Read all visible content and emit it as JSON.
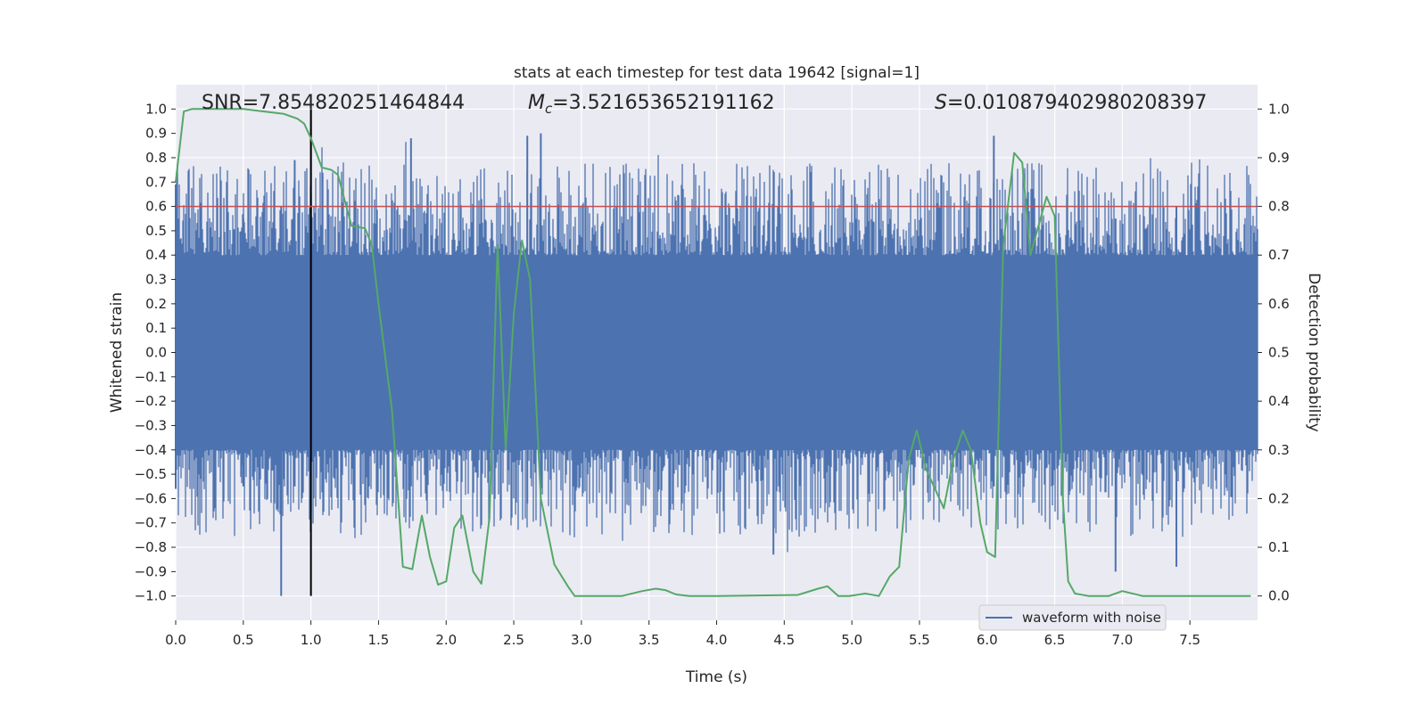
{
  "chart_data": {
    "type": "line",
    "title": "stats at each timestep for test data 19642 [signal=1]",
    "xlabel": "Time (s)",
    "ylabel": "Whitened strain",
    "y2label": "Detection probability",
    "xlim": [
      0.0,
      8.0
    ],
    "ylim": [
      -1.1,
      1.1
    ],
    "y2lim": [
      -0.05,
      1.05
    ],
    "x_ticks": [
      0.0,
      0.5,
      1.0,
      1.5,
      2.0,
      2.5,
      3.0,
      3.5,
      4.0,
      4.5,
      5.0,
      5.5,
      6.0,
      6.5,
      7.0,
      7.5
    ],
    "x_tick_labels": [
      "0.0",
      "0.5",
      "1.0",
      "1.5",
      "2.0",
      "2.5",
      "3.0",
      "3.5",
      "4.0",
      "4.5",
      "5.0",
      "5.5",
      "6.0",
      "6.5",
      "7.0",
      "7.5"
    ],
    "y_ticks": [
      1.0,
      0.9,
      0.8,
      0.7,
      0.6,
      0.5,
      0.4,
      0.3,
      0.2,
      0.1,
      0.0,
      -0.1,
      -0.2,
      -0.3,
      -0.4,
      -0.5,
      -0.6,
      -0.7,
      -0.8,
      -0.9,
      -1.0
    ],
    "y_tick_labels": [
      "1.0",
      "0.9",
      "0.8",
      "0.7",
      "0.6",
      "0.5",
      "0.4",
      "0.3",
      "0.2",
      "0.1",
      "0.0",
      "−0.1",
      "−0.2",
      "−0.3",
      "−0.4",
      "−0.5",
      "−0.6",
      "−0.7",
      "−0.8",
      "−0.9",
      "−1.0"
    ],
    "y2_ticks": [
      1.0,
      0.9,
      0.8,
      0.7,
      0.6,
      0.5,
      0.4,
      0.3,
      0.2,
      0.1,
      0.0
    ],
    "y2_tick_labels": [
      "1.0",
      "0.9",
      "0.8",
      "0.7",
      "0.6",
      "0.5",
      "0.4",
      "0.3",
      "0.2",
      "0.1",
      "0.0"
    ],
    "waveform": {
      "name": "waveform with noise",
      "color": "#4c72b0",
      "duration_s": 8.0,
      "core_amplitude": 0.4,
      "peaks": [
        {
          "t": 0.0,
          "max": 0.69,
          "min": -0.56
        },
        {
          "t": 0.5,
          "max": 0.55,
          "min": -0.55
        },
        {
          "t": 0.78,
          "max": 0.6,
          "min": -1.0
        },
        {
          "t": 0.88,
          "max": 0.79,
          "min": -0.55
        },
        {
          "t": 1.0,
          "max": 1.0,
          "min": -0.65
        },
        {
          "t": 1.74,
          "max": 0.88,
          "min": -0.55
        },
        {
          "t": 2.6,
          "max": 0.89,
          "min": -0.62
        },
        {
          "t": 2.7,
          "max": 0.9,
          "min": -0.55
        },
        {
          "t": 4.42,
          "max": 0.58,
          "min": -0.83
        },
        {
          "t": 6.05,
          "max": 0.89,
          "min": -0.55
        },
        {
          "t": 6.95,
          "max": 0.55,
          "min": -0.9
        },
        {
          "t": 7.4,
          "max": 0.6,
          "min": -0.88
        }
      ]
    },
    "detection_probability": {
      "color": "#55a868",
      "x": [
        0.0,
        0.06,
        0.12,
        0.5,
        0.8,
        0.9,
        0.95,
        1.0,
        1.08,
        1.15,
        1.2,
        1.3,
        1.4,
        1.45,
        1.5,
        1.6,
        1.68,
        1.75,
        1.82,
        1.88,
        1.94,
        2.0,
        2.06,
        2.12,
        2.2,
        2.26,
        2.32,
        2.38,
        2.44,
        2.5,
        2.56,
        2.62,
        2.7,
        2.8,
        2.9,
        2.95,
        3.05,
        3.3,
        3.45,
        3.55,
        3.62,
        3.7,
        3.8,
        4.0,
        4.3,
        4.6,
        4.75,
        4.82,
        4.9,
        4.98,
        5.1,
        5.2,
        5.28,
        5.35,
        5.42,
        5.48,
        5.55,
        5.68,
        5.75,
        5.82,
        5.88,
        5.95,
        6.0,
        6.06,
        6.12,
        6.2,
        6.26,
        6.32,
        6.38,
        6.44,
        6.5,
        6.56,
        6.6,
        6.65,
        6.75,
        6.9,
        7.0,
        7.15,
        7.25,
        7.5,
        7.7,
        7.95
      ],
      "y": [
        0.85,
        0.995,
        1.0,
        1.0,
        0.99,
        0.98,
        0.97,
        0.94,
        0.88,
        0.875,
        0.865,
        0.76,
        0.755,
        0.72,
        0.6,
        0.38,
        0.06,
        0.055,
        0.165,
        0.08,
        0.023,
        0.03,
        0.14,
        0.165,
        0.05,
        0.025,
        0.16,
        0.72,
        0.3,
        0.58,
        0.73,
        0.65,
        0.2,
        0.065,
        0.02,
        0.0,
        0.0,
        0.0,
        0.01,
        0.015,
        0.012,
        0.003,
        0.0,
        0.0,
        0.001,
        0.002,
        0.015,
        0.02,
        0.0,
        0.0,
        0.005,
        0.0,
        0.04,
        0.06,
        0.28,
        0.34,
        0.26,
        0.18,
        0.28,
        0.34,
        0.3,
        0.15,
        0.09,
        0.08,
        0.72,
        0.91,
        0.89,
        0.7,
        0.76,
        0.82,
        0.78,
        0.2,
        0.03,
        0.005,
        0.0,
        0.0,
        0.01,
        0.0,
        0.0,
        0.0,
        0.0,
        0.0
      ]
    },
    "threshold": {
      "value": 0.8,
      "color": "#c44e52"
    },
    "marker_line": {
      "x": 1.0,
      "color": "#000000"
    },
    "legend": {
      "label": "waveform with noise",
      "position": "bottom-center-right"
    },
    "annotations": {
      "snr": "SNR=7.854820251464844",
      "mc_symbol": "M",
      "mc_sub": "c",
      "mc_value": "=3.521653652191162",
      "s_symbol": "S",
      "s_value": "=0.010879402980208397"
    },
    "grid": true,
    "colors": {
      "background": "#eaeaf2",
      "grid": "#ffffff"
    }
  }
}
